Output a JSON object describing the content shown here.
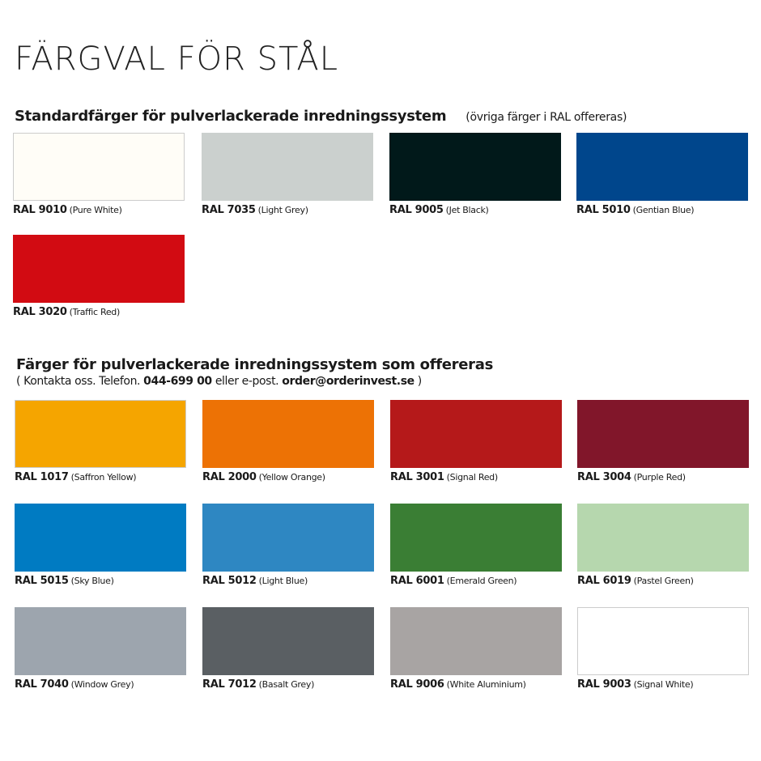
{
  "title": "FÄRGVAL FÖR STÅL",
  "standard": {
    "heading": "Standardfärger för pulverlackerade inredningssystem",
    "note": "(övriga färger i RAL offereras)",
    "colors": [
      {
        "code": "RAL 9010",
        "name": "(Pure White)",
        "hex": "#fffdf7"
      },
      {
        "code": "RAL 7035",
        "name": "(Light Grey)",
        "hex": "#cbd0ce"
      },
      {
        "code": "RAL 9005",
        "name": "(Jet Black)",
        "hex": "#01191a"
      },
      {
        "code": "RAL 5010",
        "name": "(Gentian Blue)",
        "hex": "#00468c"
      },
      {
        "code": "RAL 3020",
        "name": "(Traffic Red)",
        "hex": "#d20b12"
      }
    ]
  },
  "offered": {
    "heading": "Färger för pulverlackerade inredningssystem som offereras",
    "contact_prefix": "( Kontakta oss. Telefon.",
    "phone": "044-699 00",
    "contact_mid": "eller e-post.",
    "email": "order@orderinvest.se",
    "contact_suffix": ")",
    "colors": [
      {
        "code": "RAL 1017",
        "name": "(Saffron Yellow)",
        "hex": "#f5a500"
      },
      {
        "code": "RAL 2000",
        "name": "(Yellow Orange)",
        "hex": "#ed7205"
      },
      {
        "code": "RAL 3001",
        "name": "(Signal Red)",
        "hex": "#b5191a"
      },
      {
        "code": "RAL 3004",
        "name": "(Purple Red)",
        "hex": "#81162a"
      },
      {
        "code": "RAL 5015",
        "name": "(Sky Blue)",
        "hex": "#007bc2"
      },
      {
        "code": "RAL 5012",
        "name": "(Light Blue)",
        "hex": "#2e87c2"
      },
      {
        "code": "RAL 6001",
        "name": "(Emerald Green)",
        "hex": "#3a7e34"
      },
      {
        "code": "RAL 6019",
        "name": "(Pastel Green)",
        "hex": "#b6d7ae"
      },
      {
        "code": "RAL 7040",
        "name": "(Window Grey)",
        "hex": "#9da5ae"
      },
      {
        "code": "RAL 7012",
        "name": "(Basalt Grey)",
        "hex": "#5a5f63"
      },
      {
        "code": "RAL 9006",
        "name": "(White Aluminium)",
        "hex": "#a8a4a3"
      },
      {
        "code": "RAL 9003",
        "name": "(Signal White)",
        "hex": "#ffffff"
      }
    ]
  }
}
